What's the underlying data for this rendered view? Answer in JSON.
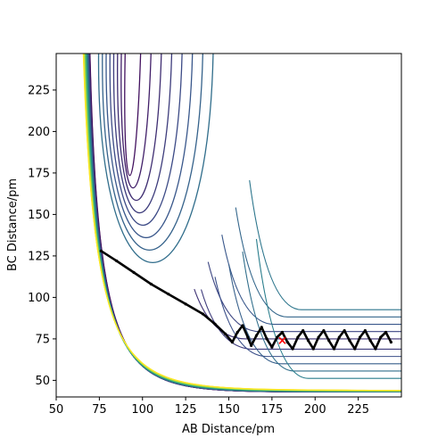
{
  "chart_data": {
    "type": "contour",
    "title": "",
    "xlabel": "AB Distance/pm",
    "ylabel": "BC Distance/pm",
    "xlim": [
      50,
      250
    ],
    "ylim": [
      40,
      247
    ],
    "xticks": [
      50,
      75,
      100,
      125,
      150,
      175,
      200,
      225
    ],
    "yticks": [
      50,
      75,
      100,
      125,
      150,
      175,
      200,
      225
    ],
    "grid": false,
    "legend": "none",
    "colormap": [
      "#440154",
      "#3b528b",
      "#21918c",
      "#5ec962",
      "#fde725"
    ],
    "contours": {
      "surface": "potential energy surface (L-shaped valley)",
      "levels": 40
    },
    "trajectory": {
      "color": "#000000",
      "points": [
        [
          76,
          128
        ],
        [
          85,
          122
        ],
        [
          95,
          115
        ],
        [
          105,
          108
        ],
        [
          115,
          102
        ],
        [
          125,
          96
        ],
        [
          135,
          90
        ],
        [
          142,
          84
        ],
        [
          148,
          78
        ],
        [
          152,
          73
        ],
        [
          155,
          79
        ],
        [
          158,
          83
        ],
        [
          161,
          76
        ],
        [
          163,
          71
        ],
        [
          166,
          77
        ],
        [
          169,
          82
        ],
        [
          172,
          75
        ],
        [
          175,
          70
        ],
        [
          178,
          76
        ],
        [
          181,
          79
        ],
        [
          184,
          73
        ],
        [
          187,
          69
        ],
        [
          190,
          76
        ],
        [
          193,
          80
        ],
        [
          196,
          74
        ],
        [
          199,
          69
        ],
        [
          202,
          76
        ],
        [
          205,
          80
        ],
        [
          208,
          74
        ],
        [
          211,
          69
        ],
        [
          214,
          76
        ],
        [
          217,
          80
        ],
        [
          220,
          74
        ],
        [
          223,
          69
        ],
        [
          226,
          76
        ],
        [
          229,
          80
        ],
        [
          232,
          74
        ],
        [
          235,
          69
        ],
        [
          238,
          76
        ],
        [
          241,
          79
        ],
        [
          244,
          73
        ]
      ]
    },
    "marker": {
      "symbol": "x",
      "color": "#ff0000",
      "x": 181,
      "y": 74
    }
  }
}
